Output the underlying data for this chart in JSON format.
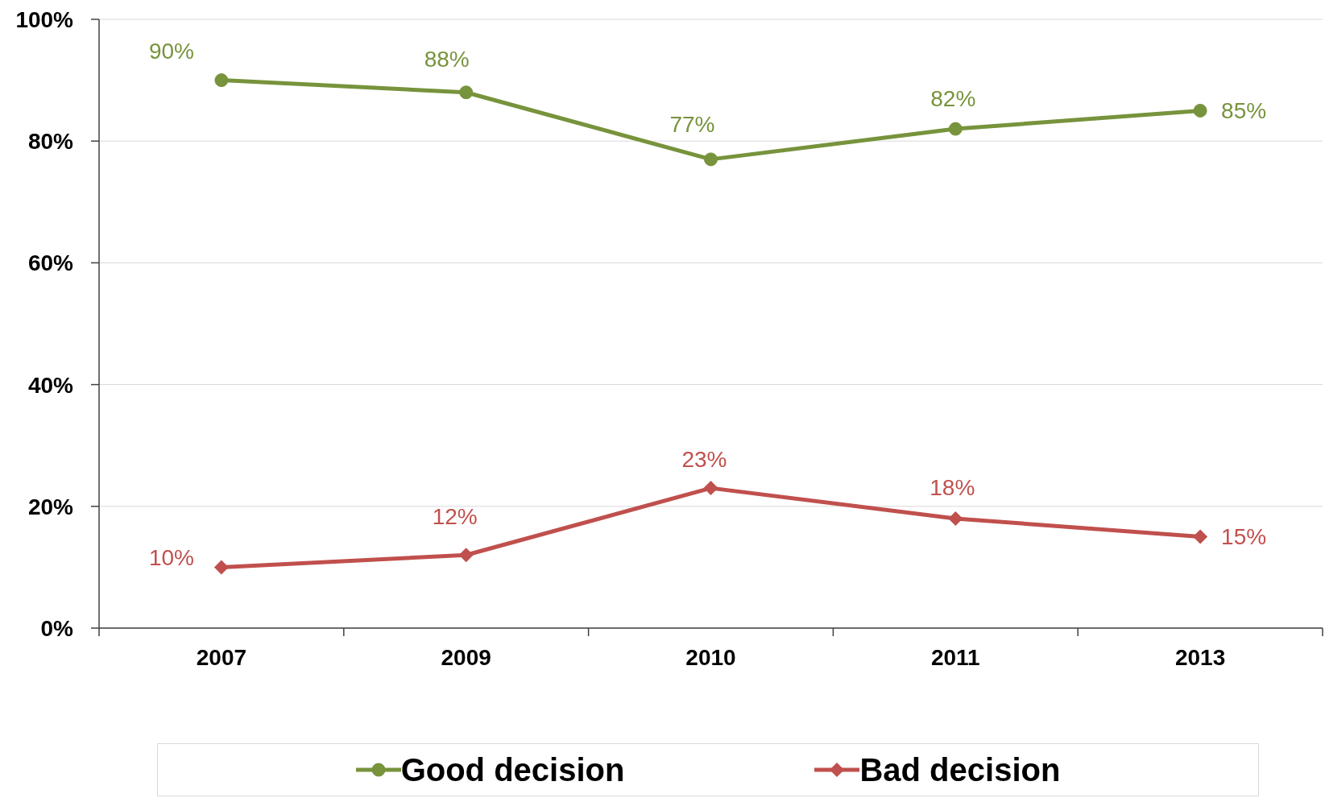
{
  "chart_data": {
    "type": "line",
    "categories": [
      "2007",
      "2009",
      "2010",
      "2011",
      "2013"
    ],
    "series": [
      {
        "name": "Good decision",
        "color": "#77933c",
        "marker": "circle",
        "values": [
          90,
          88,
          77,
          82,
          85
        ],
        "value_labels": [
          "90%",
          "88%",
          "77%",
          "82%",
          "85%"
        ]
      },
      {
        "name": "Bad decision",
        "color": "#c0504d",
        "marker": "diamond",
        "values": [
          10,
          12,
          23,
          18,
          15
        ],
        "value_labels": [
          "10%",
          "12%",
          "23%",
          "18%",
          "15%"
        ]
      }
    ],
    "ylim": [
      0,
      100
    ],
    "yticks": [
      {
        "value": 0,
        "label": "0%"
      },
      {
        "value": 20,
        "label": "20%"
      },
      {
        "value": 40,
        "label": "40%"
      },
      {
        "value": 60,
        "label": "60%"
      },
      {
        "value": 80,
        "label": "80%"
      },
      {
        "value": 100,
        "label": "100%"
      }
    ],
    "grid": "y",
    "legend": "bottom",
    "line_style": "solid"
  }
}
